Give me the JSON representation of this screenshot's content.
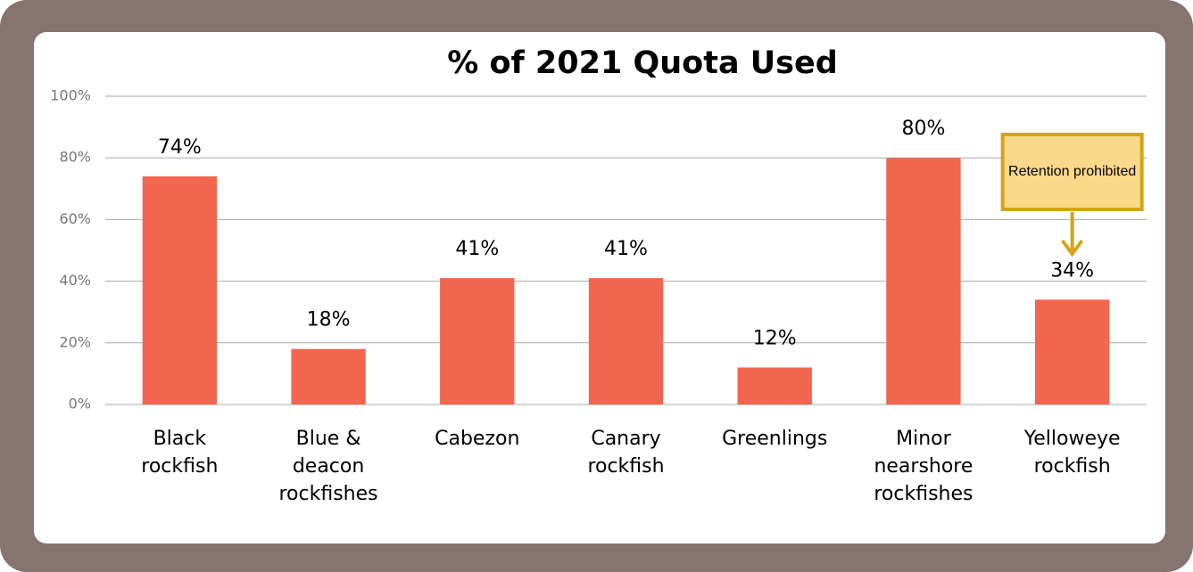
{
  "chart_data": {
    "type": "bar",
    "title": "% of 2021 Quota Used",
    "categories": [
      [
        "Black",
        "rockfish"
      ],
      [
        "Blue &",
        "deacon",
        "rockfishes"
      ],
      [
        "Cabezon"
      ],
      [
        "Canary",
        "rockfish"
      ],
      [
        "Greenlings"
      ],
      [
        "Minor",
        "nearshore",
        "rockfishes"
      ],
      [
        "Yelloweye",
        "rockfish"
      ]
    ],
    "values": [
      74,
      18,
      41,
      41,
      12,
      80,
      34
    ],
    "value_labels": [
      "74%",
      "18%",
      "41%",
      "41%",
      "12%",
      "80%",
      "34%"
    ],
    "color": "#f0664f",
    "ylim": [
      0,
      100
    ],
    "yticks": [
      {
        "value": 0,
        "label": "0%"
      },
      {
        "value": 20,
        "label": "20%"
      },
      {
        "value": 40,
        "label": "40%"
      },
      {
        "value": 60,
        "label": "60%"
      },
      {
        "value": 80,
        "label": "80%"
      },
      {
        "value": 100,
        "label": "100%"
      }
    ],
    "grid": true,
    "annotation": "Retention prohibited"
  }
}
